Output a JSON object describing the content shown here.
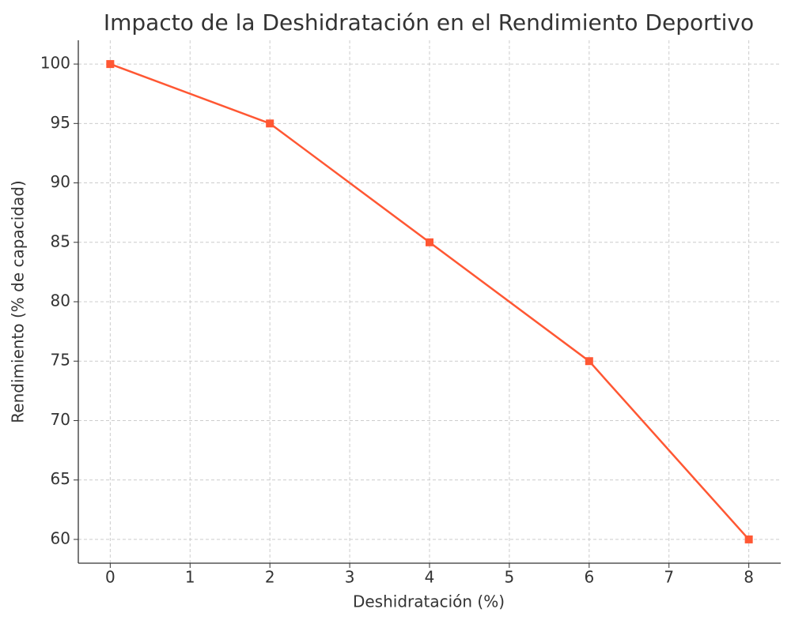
{
  "chart_data": {
    "type": "line",
    "title": "Impacto de la Deshidratación en el Rendimiento Deportivo",
    "x_label": "Deshidratación (%)",
    "y_label": "Rendimiento (% de capacidad)",
    "x": [
      0,
      2,
      4,
      6,
      8
    ],
    "series": [
      {
        "name": "Rendimiento",
        "color": "#ff5733",
        "values": [
          100,
          95,
          85,
          75,
          60
        ]
      }
    ],
    "xlim": [
      -0.4,
      8.4
    ],
    "xticks": [
      0,
      1,
      2,
      3,
      4,
      5,
      6,
      7,
      8
    ],
    "ylim": [
      58,
      102
    ],
    "yticks": [
      60,
      65,
      70,
      75,
      80,
      85,
      90,
      95,
      100
    ],
    "grid": true,
    "marker": "square"
  }
}
